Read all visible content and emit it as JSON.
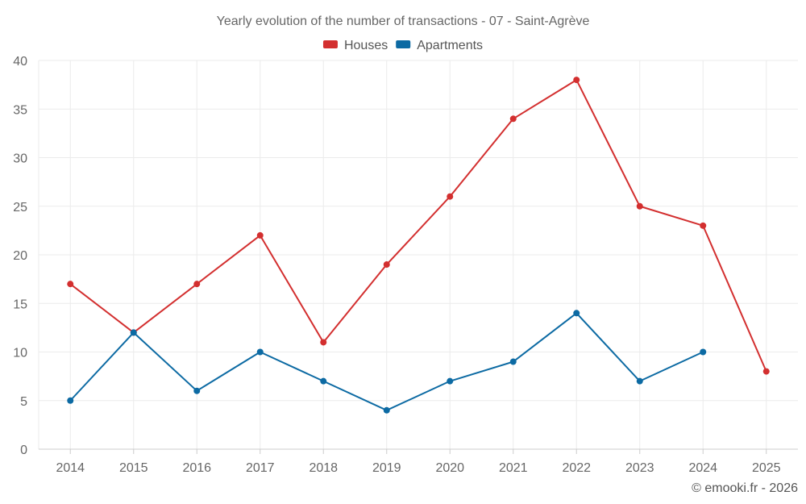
{
  "chart_data": {
    "type": "line",
    "title": "Yearly evolution of the number of transactions - 07 - Saint-Agrève",
    "categories": [
      "2014",
      "2015",
      "2016",
      "2017",
      "2018",
      "2019",
      "2020",
      "2021",
      "2022",
      "2023",
      "2024",
      "2025"
    ],
    "series": [
      {
        "name": "Houses",
        "color": "#d32f2f",
        "values": [
          17,
          12,
          17,
          22,
          11,
          19,
          26,
          34,
          38,
          25,
          23,
          8
        ]
      },
      {
        "name": "Apartments",
        "color": "#0c6aa3",
        "values": [
          5,
          12,
          6,
          10,
          7,
          4,
          7,
          9,
          14,
          7,
          10,
          null
        ]
      }
    ],
    "y_ticks": [
      0,
      5,
      10,
      15,
      20,
      25,
      30,
      35,
      40
    ],
    "ylim": [
      0,
      40
    ],
    "xlabel": "",
    "ylabel": "",
    "grid": true,
    "legend_position": "top-center"
  },
  "footer": "© emooki.fr - 2026"
}
